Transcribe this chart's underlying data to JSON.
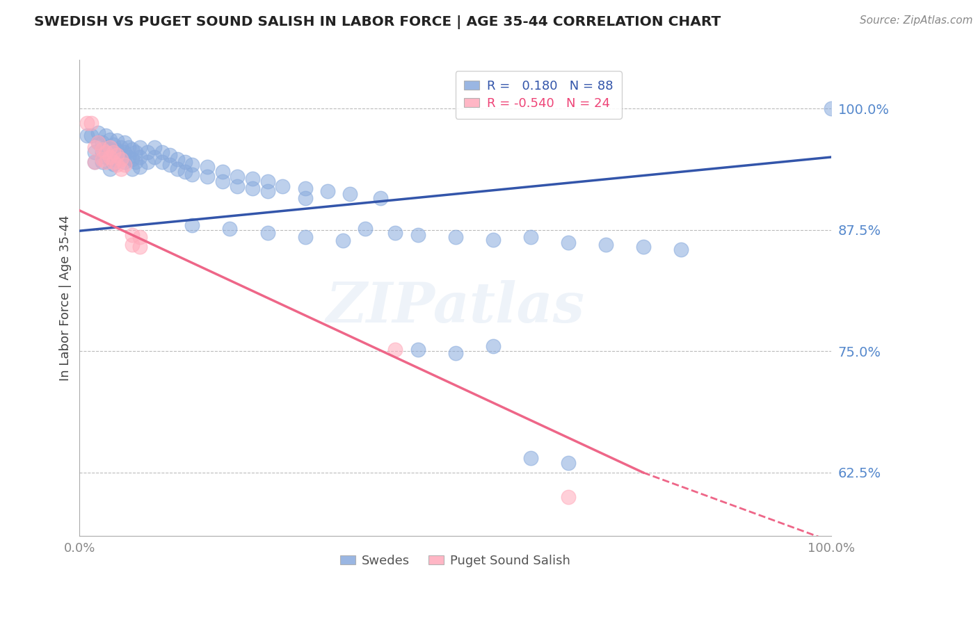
{
  "title": "SWEDISH VS PUGET SOUND SALISH IN LABOR FORCE | AGE 35-44 CORRELATION CHART",
  "source": "Source: ZipAtlas.com",
  "ylabel": "In Labor Force | Age 35-44",
  "ytick_labels": [
    "100.0%",
    "87.5%",
    "75.0%",
    "62.5%"
  ],
  "ytick_values": [
    1.0,
    0.875,
    0.75,
    0.625
  ],
  "xlim": [
    0.0,
    1.0
  ],
  "ylim": [
    0.56,
    1.05
  ],
  "blue_R": 0.18,
  "blue_N": 88,
  "pink_R": -0.54,
  "pink_N": 24,
  "blue_color": "#88AADD",
  "pink_color": "#FFAABB",
  "blue_line_color": "#3355AA",
  "pink_line_color": "#EE6688",
  "blue_legend": "Swedes",
  "pink_legend": "Puget Sound Salish",
  "watermark": "ZIPatlas",
  "blue_dots": [
    [
      0.01,
      0.972
    ],
    [
      0.015,
      0.972
    ],
    [
      0.02,
      0.955
    ],
    [
      0.02,
      0.945
    ],
    [
      0.025,
      0.975
    ],
    [
      0.025,
      0.965
    ],
    [
      0.03,
      0.965
    ],
    [
      0.03,
      0.955
    ],
    [
      0.03,
      0.945
    ],
    [
      0.035,
      0.972
    ],
    [
      0.035,
      0.96
    ],
    [
      0.035,
      0.95
    ],
    [
      0.04,
      0.968
    ],
    [
      0.04,
      0.958
    ],
    [
      0.04,
      0.948
    ],
    [
      0.04,
      0.938
    ],
    [
      0.045,
      0.963
    ],
    [
      0.045,
      0.953
    ],
    [
      0.045,
      0.943
    ],
    [
      0.05,
      0.967
    ],
    [
      0.05,
      0.957
    ],
    [
      0.05,
      0.947
    ],
    [
      0.055,
      0.96
    ],
    [
      0.055,
      0.95
    ],
    [
      0.06,
      0.965
    ],
    [
      0.06,
      0.955
    ],
    [
      0.06,
      0.945
    ],
    [
      0.065,
      0.96
    ],
    [
      0.065,
      0.95
    ],
    [
      0.07,
      0.958
    ],
    [
      0.07,
      0.948
    ],
    [
      0.07,
      0.938
    ],
    [
      0.075,
      0.955
    ],
    [
      0.075,
      0.945
    ],
    [
      0.08,
      0.96
    ],
    [
      0.08,
      0.95
    ],
    [
      0.08,
      0.94
    ],
    [
      0.09,
      0.955
    ],
    [
      0.09,
      0.945
    ],
    [
      0.1,
      0.96
    ],
    [
      0.1,
      0.95
    ],
    [
      0.11,
      0.955
    ],
    [
      0.11,
      0.945
    ],
    [
      0.12,
      0.952
    ],
    [
      0.12,
      0.942
    ],
    [
      0.13,
      0.948
    ],
    [
      0.13,
      0.938
    ],
    [
      0.14,
      0.945
    ],
    [
      0.14,
      0.935
    ],
    [
      0.15,
      0.942
    ],
    [
      0.15,
      0.932
    ],
    [
      0.17,
      0.94
    ],
    [
      0.17,
      0.93
    ],
    [
      0.19,
      0.935
    ],
    [
      0.19,
      0.925
    ],
    [
      0.21,
      0.93
    ],
    [
      0.21,
      0.92
    ],
    [
      0.23,
      0.928
    ],
    [
      0.23,
      0.918
    ],
    [
      0.25,
      0.925
    ],
    [
      0.25,
      0.915
    ],
    [
      0.27,
      0.92
    ],
    [
      0.3,
      0.918
    ],
    [
      0.3,
      0.908
    ],
    [
      0.33,
      0.915
    ],
    [
      0.36,
      0.912
    ],
    [
      0.4,
      0.908
    ],
    [
      0.15,
      0.88
    ],
    [
      0.2,
      0.876
    ],
    [
      0.25,
      0.872
    ],
    [
      0.3,
      0.868
    ],
    [
      0.35,
      0.864
    ],
    [
      0.38,
      0.876
    ],
    [
      0.42,
      0.872
    ],
    [
      0.45,
      0.87
    ],
    [
      0.5,
      0.868
    ],
    [
      0.55,
      0.865
    ],
    [
      0.45,
      0.752
    ],
    [
      0.5,
      0.748
    ],
    [
      0.55,
      0.755
    ],
    [
      0.6,
      0.868
    ],
    [
      0.65,
      0.862
    ],
    [
      0.7,
      0.86
    ],
    [
      0.75,
      0.858
    ],
    [
      0.8,
      0.855
    ],
    [
      0.6,
      0.64
    ],
    [
      0.65,
      0.635
    ],
    [
      1.0,
      1.0
    ]
  ],
  "pink_dots": [
    [
      0.01,
      0.985
    ],
    [
      0.015,
      0.985
    ],
    [
      0.02,
      0.96
    ],
    [
      0.02,
      0.945
    ],
    [
      0.025,
      0.965
    ],
    [
      0.03,
      0.958
    ],
    [
      0.03,
      0.948
    ],
    [
      0.035,
      0.955
    ],
    [
      0.035,
      0.945
    ],
    [
      0.04,
      0.96
    ],
    [
      0.04,
      0.95
    ],
    [
      0.045,
      0.955
    ],
    [
      0.045,
      0.945
    ],
    [
      0.05,
      0.952
    ],
    [
      0.05,
      0.942
    ],
    [
      0.055,
      0.948
    ],
    [
      0.055,
      0.938
    ],
    [
      0.06,
      0.942
    ],
    [
      0.07,
      0.87
    ],
    [
      0.07,
      0.86
    ],
    [
      0.08,
      0.868
    ],
    [
      0.08,
      0.858
    ],
    [
      0.42,
      0.752
    ],
    [
      0.65,
      0.6
    ]
  ],
  "blue_trend": [
    0.0,
    1.0,
    0.874,
    0.95
  ],
  "pink_trend_solid": [
    0.0,
    0.75,
    0.895,
    0.625
  ],
  "pink_trend_dashed": [
    0.75,
    1.05,
    0.625,
    0.54
  ]
}
